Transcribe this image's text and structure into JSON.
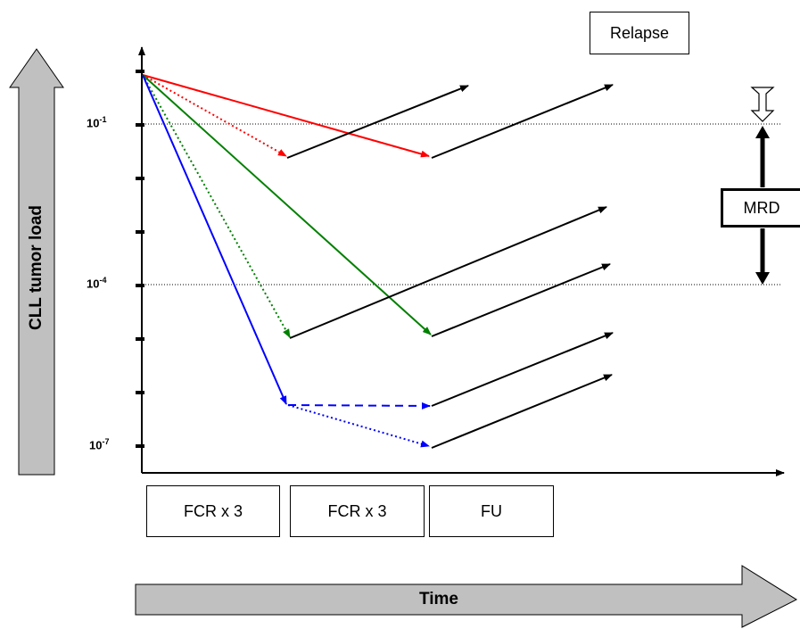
{
  "y_axis": {
    "title": "CLL tumor load",
    "ticks": [
      {
        "base": "10",
        "exp": "-1"
      },
      {
        "base": "10",
        "exp": "-4"
      },
      {
        "base": "10",
        "exp": "-7"
      }
    ]
  },
  "x_axis": {
    "title": "Time"
  },
  "phases": [
    "FCR x 3",
    "FCR x 3",
    "FU"
  ],
  "labels": {
    "relapse": "Relapse",
    "mrd": "MRD"
  },
  "colors": {
    "red": "#ff0000",
    "green": "#008000",
    "blue": "#0000ff",
    "black": "#000000",
    "gray": "#c0c0c0"
  }
}
